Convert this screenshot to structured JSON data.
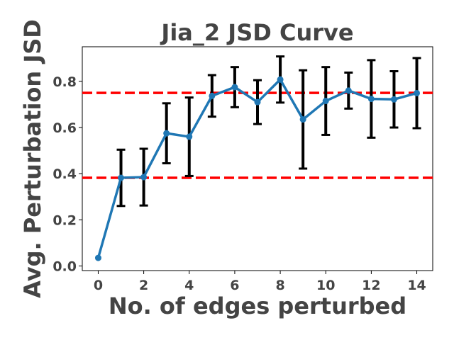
{
  "chart_data": {
    "type": "line",
    "title": "Jia_2 JSD Curve",
    "xlabel": "No. of edges perturbed",
    "ylabel": "Avg. Perturbation JSD",
    "x": [
      0,
      1,
      2,
      3,
      4,
      5,
      6,
      7,
      8,
      9,
      10,
      11,
      12,
      13,
      14
    ],
    "xlim": [
      -0.7,
      14.7
    ],
    "ylim": [
      -0.02,
      0.95
    ],
    "xticks": [
      0,
      2,
      4,
      6,
      8,
      10,
      12,
      14
    ],
    "yticks": [
      0.0,
      0.2,
      0.4,
      0.6,
      0.8
    ],
    "xtick_labels": [
      "0",
      "2",
      "4",
      "6",
      "8",
      "10",
      "12",
      "14"
    ],
    "ytick_labels": [
      "0.0",
      "0.2",
      "0.4",
      "0.6",
      "0.8"
    ],
    "series": [
      {
        "values": [
          0.035,
          0.382,
          0.385,
          0.575,
          0.56,
          0.737,
          0.775,
          0.71,
          0.808,
          0.635,
          0.715,
          0.76,
          0.724,
          0.722,
          0.749
        ],
        "error": [
          0.0,
          0.122,
          0.123,
          0.13,
          0.17,
          0.09,
          0.087,
          0.095,
          0.1,
          0.213,
          0.147,
          0.078,
          0.168,
          0.122,
          0.152
        ],
        "color": "#1f77b4",
        "error_color": "#000000"
      }
    ],
    "reference_lines": [
      {
        "y": 0.75,
        "color": "#ff0000",
        "style": "dashed"
      },
      {
        "y": 0.382,
        "color": "#ff0000",
        "style": "dashed"
      }
    ],
    "grid": false,
    "legend": "none"
  }
}
